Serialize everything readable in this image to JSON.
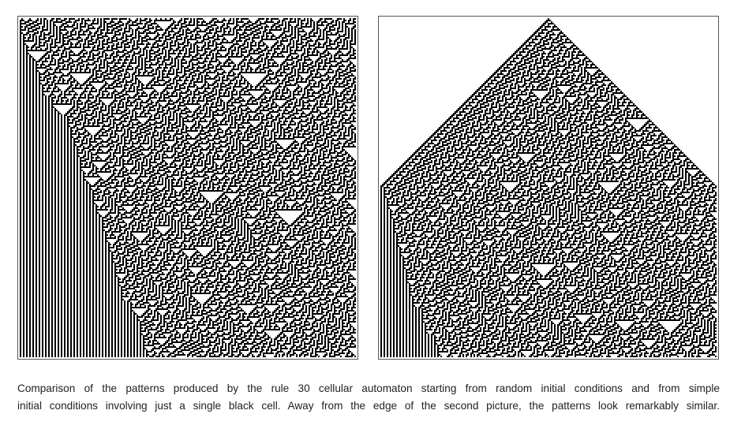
{
  "figure": {
    "automaton": {
      "rule": 30,
      "colors": {
        "on": "#000000",
        "off": "#ffffff",
        "frame": "#555555"
      }
    },
    "panels": [
      {
        "id": "random",
        "initial_condition": "random"
      },
      {
        "id": "single",
        "initial_condition": "single-black-cell"
      }
    ],
    "caption": {
      "line1": "Comparison of the patterns produced by the rule 30 cellular automaton starting from random initial conditions and from simple",
      "line2": "initial conditions involving just a single black cell. Away from the edge of the second picture, the patterns look remarkably similar."
    }
  }
}
